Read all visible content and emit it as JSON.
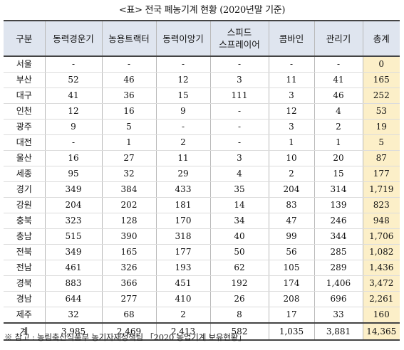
{
  "title": "<표> 전국 폐농기계 현황 (2020년말 기준)",
  "columns": [
    "구분",
    "동력경운기",
    "농용트랙터",
    "동력이앙기",
    "스피드\n스프레이어",
    "콤바인",
    "관리기",
    "총계"
  ],
  "rows": [
    {
      "region": "서울",
      "values": [
        "-",
        "-",
        "-",
        "-",
        "-",
        "-",
        "0"
      ]
    },
    {
      "region": "부산",
      "values": [
        "52",
        "46",
        "12",
        "3",
        "11",
        "41",
        "165"
      ]
    },
    {
      "region": "대구",
      "values": [
        "41",
        "36",
        "15",
        "111",
        "3",
        "46",
        "252"
      ]
    },
    {
      "region": "인천",
      "values": [
        "12",
        "16",
        "9",
        "-",
        "12",
        "4",
        "53"
      ]
    },
    {
      "region": "광주",
      "values": [
        "9",
        "5",
        "-",
        "-",
        "3",
        "2",
        "19"
      ]
    },
    {
      "region": "대전",
      "values": [
        "-",
        "1",
        "2",
        "-",
        "1",
        "1",
        "5"
      ]
    },
    {
      "region": "울산",
      "values": [
        "16",
        "27",
        "11",
        "3",
        "10",
        "20",
        "87"
      ]
    },
    {
      "region": "세종",
      "values": [
        "95",
        "32",
        "29",
        "4",
        "2",
        "15",
        "177"
      ]
    },
    {
      "region": "경기",
      "values": [
        "349",
        "384",
        "433",
        "35",
        "204",
        "314",
        "1,719"
      ]
    },
    {
      "region": "강원",
      "values": [
        "204",
        "202",
        "181",
        "14",
        "83",
        "139",
        "823"
      ]
    },
    {
      "region": "충북",
      "values": [
        "323",
        "128",
        "170",
        "34",
        "47",
        "246",
        "948"
      ]
    },
    {
      "region": "충남",
      "values": [
        "515",
        "390",
        "318",
        "40",
        "99",
        "344",
        "1,706"
      ]
    },
    {
      "region": "전북",
      "values": [
        "349",
        "165",
        "177",
        "50",
        "56",
        "285",
        "1,082"
      ]
    },
    {
      "region": "전남",
      "values": [
        "461",
        "326",
        "193",
        "62",
        "105",
        "289",
        "1,436"
      ]
    },
    {
      "region": "경북",
      "values": [
        "883",
        "366",
        "451",
        "192",
        "174",
        "1,406",
        "3,472"
      ]
    },
    {
      "region": "경남",
      "values": [
        "644",
        "277",
        "410",
        "26",
        "208",
        "696",
        "2,261"
      ]
    },
    {
      "region": "제주",
      "values": [
        "32",
        "68",
        "2",
        "8",
        "17",
        "33",
        "160"
      ]
    }
  ],
  "total_row": {
    "region": "계",
    "values": [
      "3,985",
      "2,469",
      "2,413",
      "582",
      "1,035",
      "3,881",
      "14,365"
    ]
  },
  "note": "※ 참고 : 농림축산식품부 농기자재정책팀 「2020 농업기계 보유현황」",
  "colors": {
    "header_bg": "#dfe5ef",
    "total_bg": "#fcefc8"
  }
}
